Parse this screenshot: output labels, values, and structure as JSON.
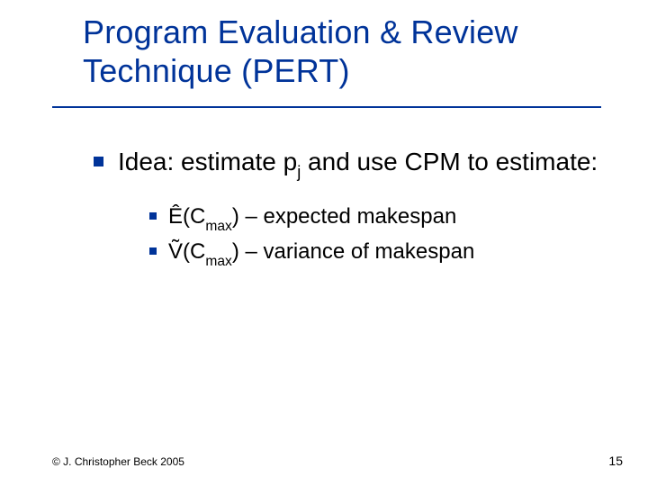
{
  "colors": {
    "title": "#003399",
    "underline": "#003399",
    "bullet": "#003399",
    "text": "#000000",
    "background": "#ffffff"
  },
  "title": "Program Evaluation & Review Technique (PERT)",
  "main_bullet": {
    "prefix": "Idea: estimate p",
    "sub1": "j",
    "mid": " and use CPM to estimate:"
  },
  "sub_bullets": [
    {
      "lead": "Ê(C",
      "sub": "max",
      "tail": ") – expected makespan"
    },
    {
      "lead": "Ṽ(C",
      "sub": "max",
      "tail": ") – variance of makespan"
    }
  ],
  "footer": "© J. Christopher Beck 2005",
  "page": "15",
  "typography": {
    "title_fontsize": 36,
    "l1_fontsize": 28,
    "l2_fontsize": 24,
    "footer_fontsize": 12,
    "page_fontsize": 14,
    "font_family": "Verdana"
  }
}
